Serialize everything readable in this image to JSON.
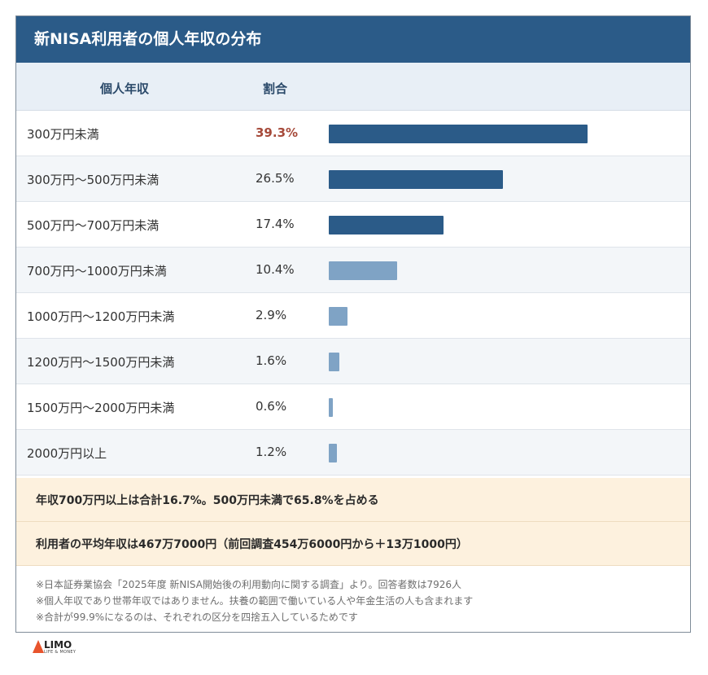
{
  "title": "新NISA利用者の個人年収の分布",
  "headers": {
    "label": "個人年収",
    "share": "割合"
  },
  "chart_data": {
    "type": "bar",
    "title": "新NISA利用者の個人年収の分布",
    "categories": [
      "300万円未満",
      "300万円〜500万円未満",
      "500万円〜700万円未満",
      "700万円〜1000万円未満",
      "1000万円〜1200万円未満",
      "1200万円〜1500万円未満",
      "1500万円〜2000万円未満",
      "2000万円以上"
    ],
    "values": [
      39.3,
      26.5,
      17.4,
      10.4,
      2.9,
      1.6,
      0.6,
      1.2
    ],
    "value_labels": [
      "39.3%",
      "26.5%",
      "17.4%",
      "10.4%",
      "2.9%",
      "1.6%",
      "0.6%",
      "1.2%"
    ],
    "unit": "%",
    "xlim": [
      0,
      50
    ],
    "colors": {
      "under_700": "#2b5b88",
      "700_plus": "#7fa3c5",
      "highlight_text": "#a64a3a"
    }
  },
  "notes": [
    "年収700万円以上は合計16.7%。500万円未満で65.8%を占める",
    "利用者の平均年収は467万7000円（前回調査454万6000円から＋13万1000円）"
  ],
  "footnotes": [
    "※日本証券業協会「2025年度 新NISA開始後の利用動向に関する調査」より。回答者数は7926人",
    "※個人年収であり世帯年収ではありません。扶養の範囲で働いている人や年金生活の人も含まれます",
    "※合計が99.9%になるのは、それぞれの区分を四捨五入しているためです"
  ],
  "logo": {
    "name": "LIMO",
    "tagline": "LIFE & MONEY"
  }
}
